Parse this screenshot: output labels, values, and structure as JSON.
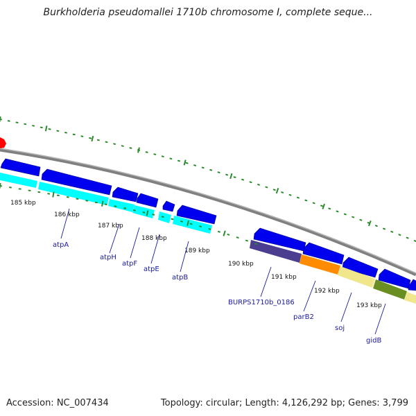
{
  "title": "Burkholderia pseudomallei 1710b chromosome I, complete seque...",
  "footer": {
    "accession": "Accession: NC_007434",
    "summary": "Topology: circular; Length: 4,126,292 bp; Genes: 3,799"
  },
  "colors": {
    "strand_forward": "#0000ee",
    "cds_cyan": "#00ffff",
    "backbone": "#808080",
    "tick": "#2a8a2a",
    "label": "#1a1aa0",
    "marker": "#ff0000",
    "burps0186": "#4b3d8f",
    "parB2": "#ff8c00",
    "soj": "#f0e68c",
    "gidB": "#6b8e23"
  },
  "ticks": [
    {
      "label": "185 kbp"
    },
    {
      "label": "186 kbp"
    },
    {
      "label": "187 kbp"
    },
    {
      "label": "188 kbp"
    },
    {
      "label": "189 kbp"
    },
    {
      "label": "190 kbp"
    },
    {
      "label": "191 kbp"
    },
    {
      "label": "192 kbp"
    },
    {
      "label": "193 kbp"
    }
  ],
  "genes": [
    {
      "label": "atpA"
    },
    {
      "label": "atpH"
    },
    {
      "label": "atpF"
    },
    {
      "label": "atpE"
    },
    {
      "label": "atpB"
    },
    {
      "label": "BURPS1710b_0186"
    },
    {
      "label": "parB2"
    },
    {
      "label": "soj"
    },
    {
      "label": "gidB"
    }
  ]
}
